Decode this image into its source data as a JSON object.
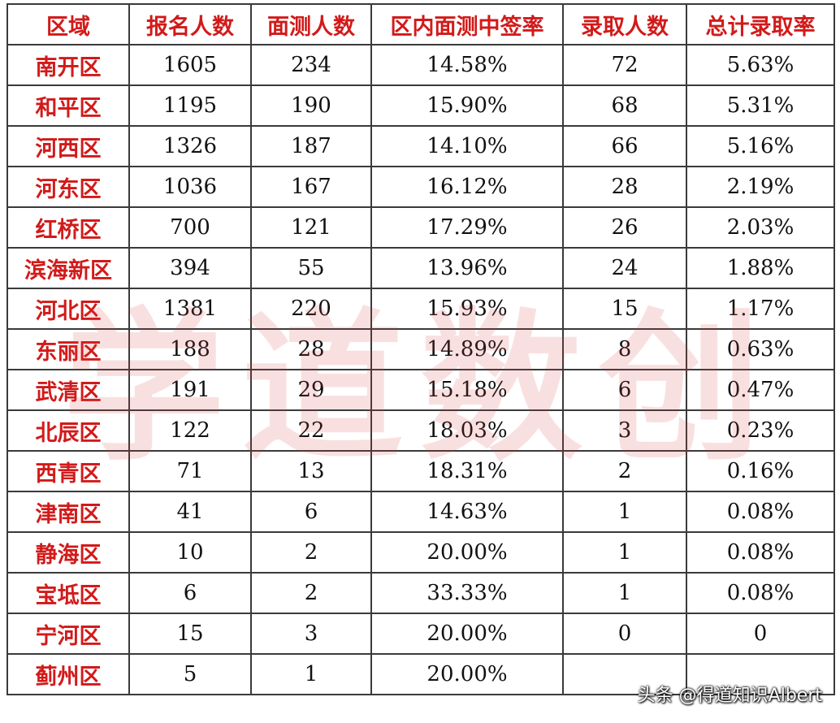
{
  "table": {
    "headers": [
      "区域",
      "报名人数",
      "面测人数",
      "区内面测中签率",
      "录取人数",
      "总计录取率"
    ],
    "rows": [
      [
        "南开区",
        "1605",
        "234",
        "14.58%",
        "72",
        "5.63%"
      ],
      [
        "和平区",
        "1195",
        "190",
        "15.90%",
        "68",
        "5.31%"
      ],
      [
        "河西区",
        "1326",
        "187",
        "14.10%",
        "66",
        "5.16%"
      ],
      [
        "河东区",
        "1036",
        "167",
        "16.12%",
        "28",
        "2.19%"
      ],
      [
        "红桥区",
        "700",
        "121",
        "17.29%",
        "26",
        "2.03%"
      ],
      [
        "滨海新区",
        "394",
        "55",
        "13.96%",
        "24",
        "1.88%"
      ],
      [
        "河北区",
        "1381",
        "220",
        "15.93%",
        "15",
        "1.17%"
      ],
      [
        "东丽区",
        "188",
        "28",
        "14.89%",
        "8",
        "0.63%"
      ],
      [
        "武清区",
        "191",
        "29",
        "15.18%",
        "6",
        "0.47%"
      ],
      [
        "北辰区",
        "122",
        "22",
        "18.03%",
        "3",
        "0.23%"
      ],
      [
        "西青区",
        "71",
        "13",
        "18.31%",
        "2",
        "0.16%"
      ],
      [
        "津南区",
        "41",
        "6",
        "14.63%",
        "1",
        "0.08%"
      ],
      [
        "静海区",
        "10",
        "2",
        "20.00%",
        "1",
        "0.08%"
      ],
      [
        "宝坻区",
        "6",
        "2",
        "33.33%",
        "1",
        "0.08%"
      ],
      [
        "宁河区",
        "15",
        "3",
        "20.00%",
        "0",
        "0"
      ],
      [
        "蓟州区",
        "5",
        "1",
        "20.00%",
        "",
        ""
      ]
    ]
  },
  "watermark": "学道数创",
  "credit": "头条 @得道知识Albert",
  "colors": {
    "header_text": "#d21a1a",
    "region_text": "#d21a1a",
    "border": "#3a3a3a"
  }
}
